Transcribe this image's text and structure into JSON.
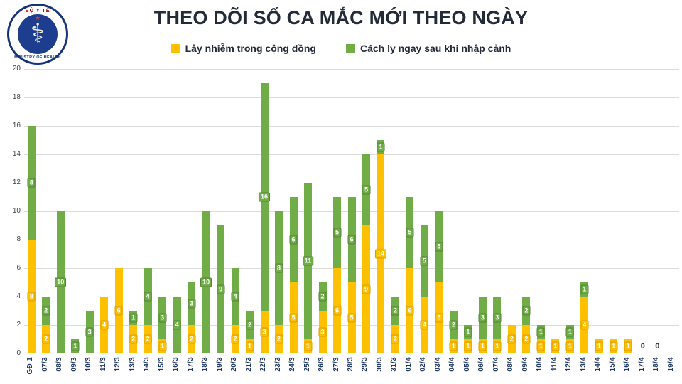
{
  "logo": {
    "top_text": "BỘ Y TẾ",
    "bottom_text": "MINISTRY OF HEALTH"
  },
  "title": "THEO DÕI SỐ CA MẮC MỚI THEO NGÀY",
  "legend": [
    {
      "label": "Lây nhiễm trong cộng đồng",
      "color": "#FFC000"
    },
    {
      "label": "Cách ly ngay sau khi nhập cảnh",
      "color": "#70AD47"
    }
  ],
  "chart_data": {
    "type": "bar",
    "stacked": true,
    "title": "THEO DÕI SỐ CA MẮC MỚI THEO NGÀY",
    "xlabel": "",
    "ylabel": "",
    "ylim": [
      0,
      20
    ],
    "ytick_step": 2,
    "grid": true,
    "legend_position": "top",
    "categories": [
      "GĐ 1",
      "07/3",
      "08/3",
      "09/3",
      "10/3",
      "11/3",
      "12/3",
      "13/3",
      "14/3",
      "15/3",
      "16/3",
      "17/3",
      "18/3",
      "19/3",
      "20/3",
      "21/3",
      "22/3",
      "23/3",
      "24/3",
      "25/3",
      "26/3",
      "27/3",
      "28/3",
      "29/3",
      "30/3",
      "31/3",
      "01/4",
      "02/4",
      "03/4",
      "04/4",
      "05/4",
      "06/4",
      "07/4",
      "08/4",
      "09/4",
      "10/4",
      "11/4",
      "12/4",
      "13/4",
      "14/4",
      "15/4",
      "16/4",
      "17/4",
      "18/4",
      "19/4"
    ],
    "series": [
      {
        "name": "Lây nhiễm trong cộng đồng",
        "color": "#FFC000",
        "border": "#d89c00",
        "values": [
          8,
          2,
          0,
          0,
          0,
          4,
          6,
          2,
          2,
          1,
          0,
          2,
          0,
          0,
          2,
          1,
          3,
          2,
          5,
          1,
          3,
          6,
          5,
          9,
          14,
          2,
          6,
          4,
          5,
          1,
          1,
          1,
          1,
          2,
          2,
          1,
          1,
          1,
          4,
          1,
          1,
          1,
          0,
          0,
          0
        ]
      },
      {
        "name": "Cách ly ngay sau khi nhập cảnh",
        "color": "#70AD47",
        "border": "#538235",
        "values": [
          8,
          2,
          10,
          1,
          3,
          0,
          0,
          1,
          4,
          3,
          4,
          3,
          10,
          9,
          4,
          2,
          16,
          8,
          6,
          11,
          2,
          5,
          6,
          5,
          1,
          2,
          5,
          5,
          5,
          2,
          1,
          3,
          3,
          0,
          2,
          1,
          0,
          1,
          1,
          0,
          0,
          0,
          0,
          0,
          0
        ]
      }
    ],
    "zero_label_categories": [
      "17/4",
      "18/4"
    ]
  }
}
